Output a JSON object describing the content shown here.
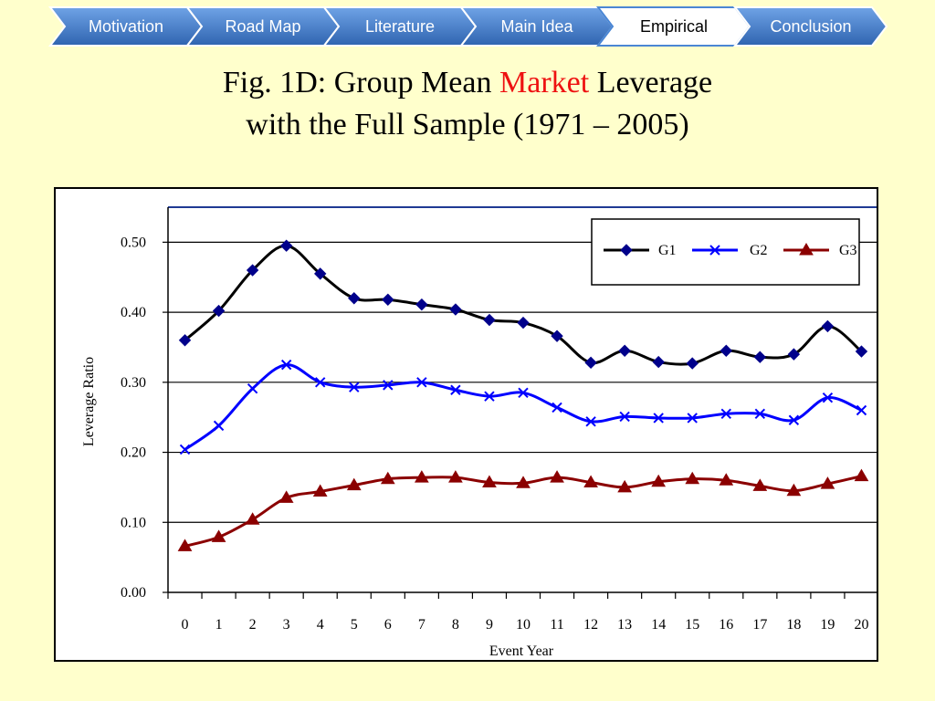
{
  "nav": {
    "items": [
      {
        "label": "Motivation",
        "active": false
      },
      {
        "label": "Road Map",
        "active": false
      },
      {
        "label": "Literature",
        "active": false
      },
      {
        "label": "Main Idea",
        "active": false
      },
      {
        "label": "Empirical",
        "active": true
      },
      {
        "label": "Conclusion",
        "active": false
      }
    ],
    "colors": {
      "fill": "#4a86d4",
      "fill_dark": "#2f64b0",
      "active_fill": "#ffffff",
      "text": "#ffffff",
      "active_text": "#000000"
    }
  },
  "slide": {
    "title_line1_pre": "Fig. 1D: Group Mean ",
    "title_line1_highlight": "Market",
    "title_line1_post": " Leverage",
    "title_line2": "with the Full Sample (1971 – 2005)",
    "highlight_color": "#ee1111"
  },
  "chart_data": {
    "type": "line",
    "title": "",
    "xlabel": "Event Year",
    "ylabel": "Leverage Ratio",
    "x": [
      0,
      1,
      2,
      3,
      4,
      5,
      6,
      7,
      8,
      9,
      10,
      11,
      12,
      13,
      14,
      15,
      16,
      17,
      18,
      19,
      20
    ],
    "ylim": [
      0,
      0.55
    ],
    "yticks": [
      "0.00",
      "0.10",
      "0.20",
      "0.30",
      "0.40",
      "0.50"
    ],
    "ytick_values": [
      0,
      0.1,
      0.2,
      0.3,
      0.4,
      0.5
    ],
    "grid": true,
    "legend": "top-right",
    "series": [
      {
        "name": "G1",
        "color": "#000000",
        "marker": "diamond",
        "marker_color": "#00008b",
        "values": [
          0.36,
          0.402,
          0.46,
          0.495,
          0.455,
          0.42,
          0.418,
          0.411,
          0.404,
          0.389,
          0.385,
          0.366,
          0.328,
          0.345,
          0.329,
          0.327,
          0.345,
          0.336,
          0.34,
          0.38,
          0.344
        ]
      },
      {
        "name": "G2",
        "color": "#0000ff",
        "marker": "x",
        "marker_color": "#0000ff",
        "values": [
          0.204,
          0.238,
          0.291,
          0.325,
          0.3,
          0.293,
          0.296,
          0.3,
          0.289,
          0.28,
          0.285,
          0.264,
          0.244,
          0.251,
          0.249,
          0.249,
          0.255,
          0.255,
          0.246,
          0.278,
          0.26
        ]
      },
      {
        "name": "G3",
        "color": "#8b0000",
        "marker": "triangle",
        "marker_color": "#8b0000",
        "values": [
          0.066,
          0.079,
          0.104,
          0.135,
          0.144,
          0.153,
          0.162,
          0.164,
          0.164,
          0.157,
          0.156,
          0.164,
          0.157,
          0.15,
          0.158,
          0.162,
          0.16,
          0.152,
          0.145,
          0.155,
          0.166
        ]
      }
    ]
  }
}
